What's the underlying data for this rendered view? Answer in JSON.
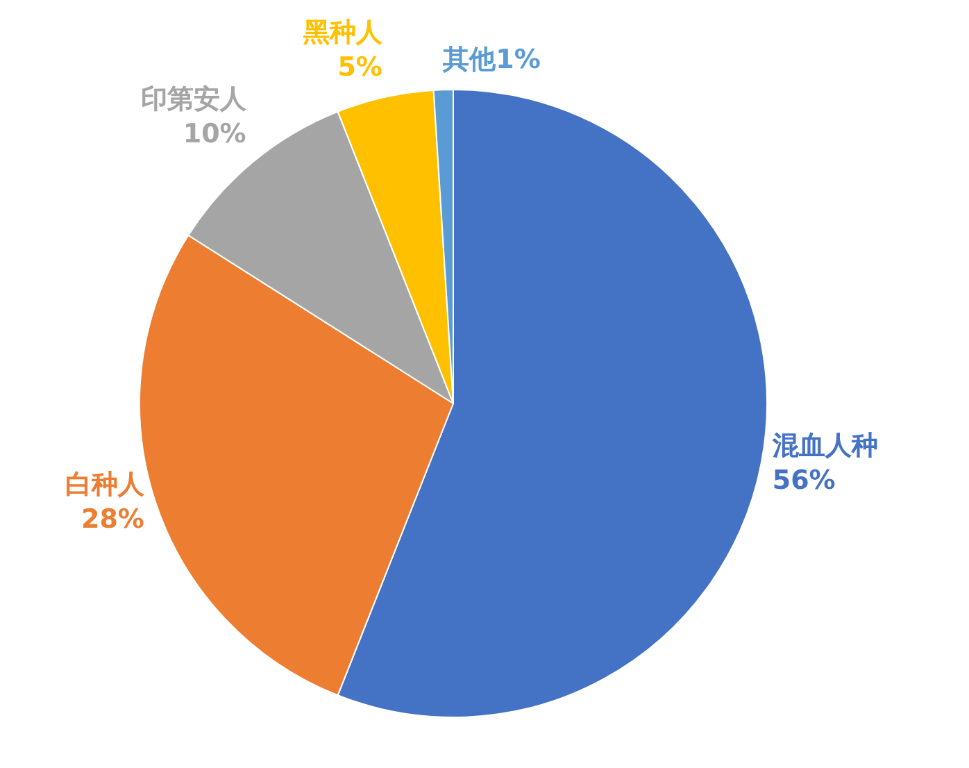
{
  "chart_data": {
    "type": "pie",
    "categories": [
      "混血人种",
      "白种人",
      "印第安人",
      "黑种人",
      "其他"
    ],
    "values": [
      56,
      28,
      10,
      5,
      1
    ],
    "value_labels": [
      "56%",
      "28%",
      "10%",
      "5%",
      "1%"
    ],
    "colors": [
      "#4472c4",
      "#ed7d31",
      "#a5a5a5",
      "#ffc000",
      "#5b9bd5"
    ],
    "legend": false
  }
}
